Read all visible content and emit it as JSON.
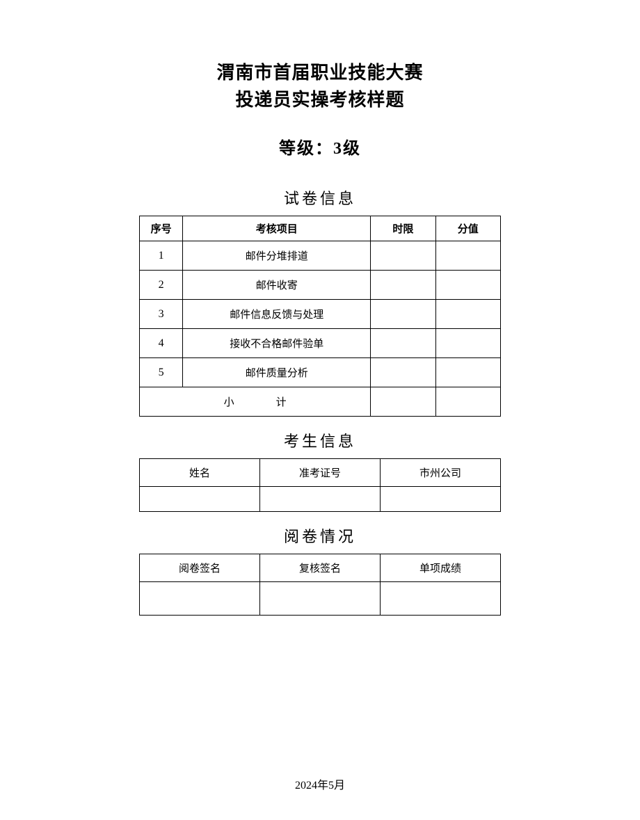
{
  "title": {
    "line1": "渭南市首届职业技能大赛",
    "line2": "投递员实操考核样题",
    "level_label": "等级：",
    "level_value": "3级"
  },
  "sections": {
    "exam_info": "试卷信息",
    "candidate_info": "考生信息",
    "review_info": "阅卷情况"
  },
  "exam_table": {
    "headers": {
      "seq": "序号",
      "item": "考核项目",
      "time": "时限",
      "score": "分值"
    },
    "rows": [
      {
        "seq": "1",
        "item": "邮件分堆排道",
        "time": "",
        "score": ""
      },
      {
        "seq": "2",
        "item": "邮件收寄",
        "time": "",
        "score": ""
      },
      {
        "seq": "3",
        "item": "邮件信息反馈与处理",
        "time": "",
        "score": ""
      },
      {
        "seq": "4",
        "item": "接收不合格邮件验单",
        "time": "",
        "score": ""
      },
      {
        "seq": "5",
        "item": "邮件质量分析",
        "time": "",
        "score": ""
      }
    ],
    "subtotal": "小计"
  },
  "candidate_table": {
    "headers": {
      "name": "姓名",
      "ticket": "准考证号",
      "company": "市州公司"
    },
    "row": {
      "name": "",
      "ticket": "",
      "company": ""
    }
  },
  "review_table": {
    "headers": {
      "reviewer": "阅卷签名",
      "checker": "复核签名",
      "score": "单项成绩"
    },
    "row": {
      "reviewer": "",
      "checker": "",
      "score": ""
    }
  },
  "footer_date": "2024年5月",
  "colors": {
    "text": "#000000",
    "border": "#000000",
    "background": "#ffffff"
  },
  "typography": {
    "title_fontsize": 26,
    "level_fontsize": 24,
    "section_fontsize": 22,
    "table_fontsize": 15,
    "footer_fontsize": 16
  }
}
